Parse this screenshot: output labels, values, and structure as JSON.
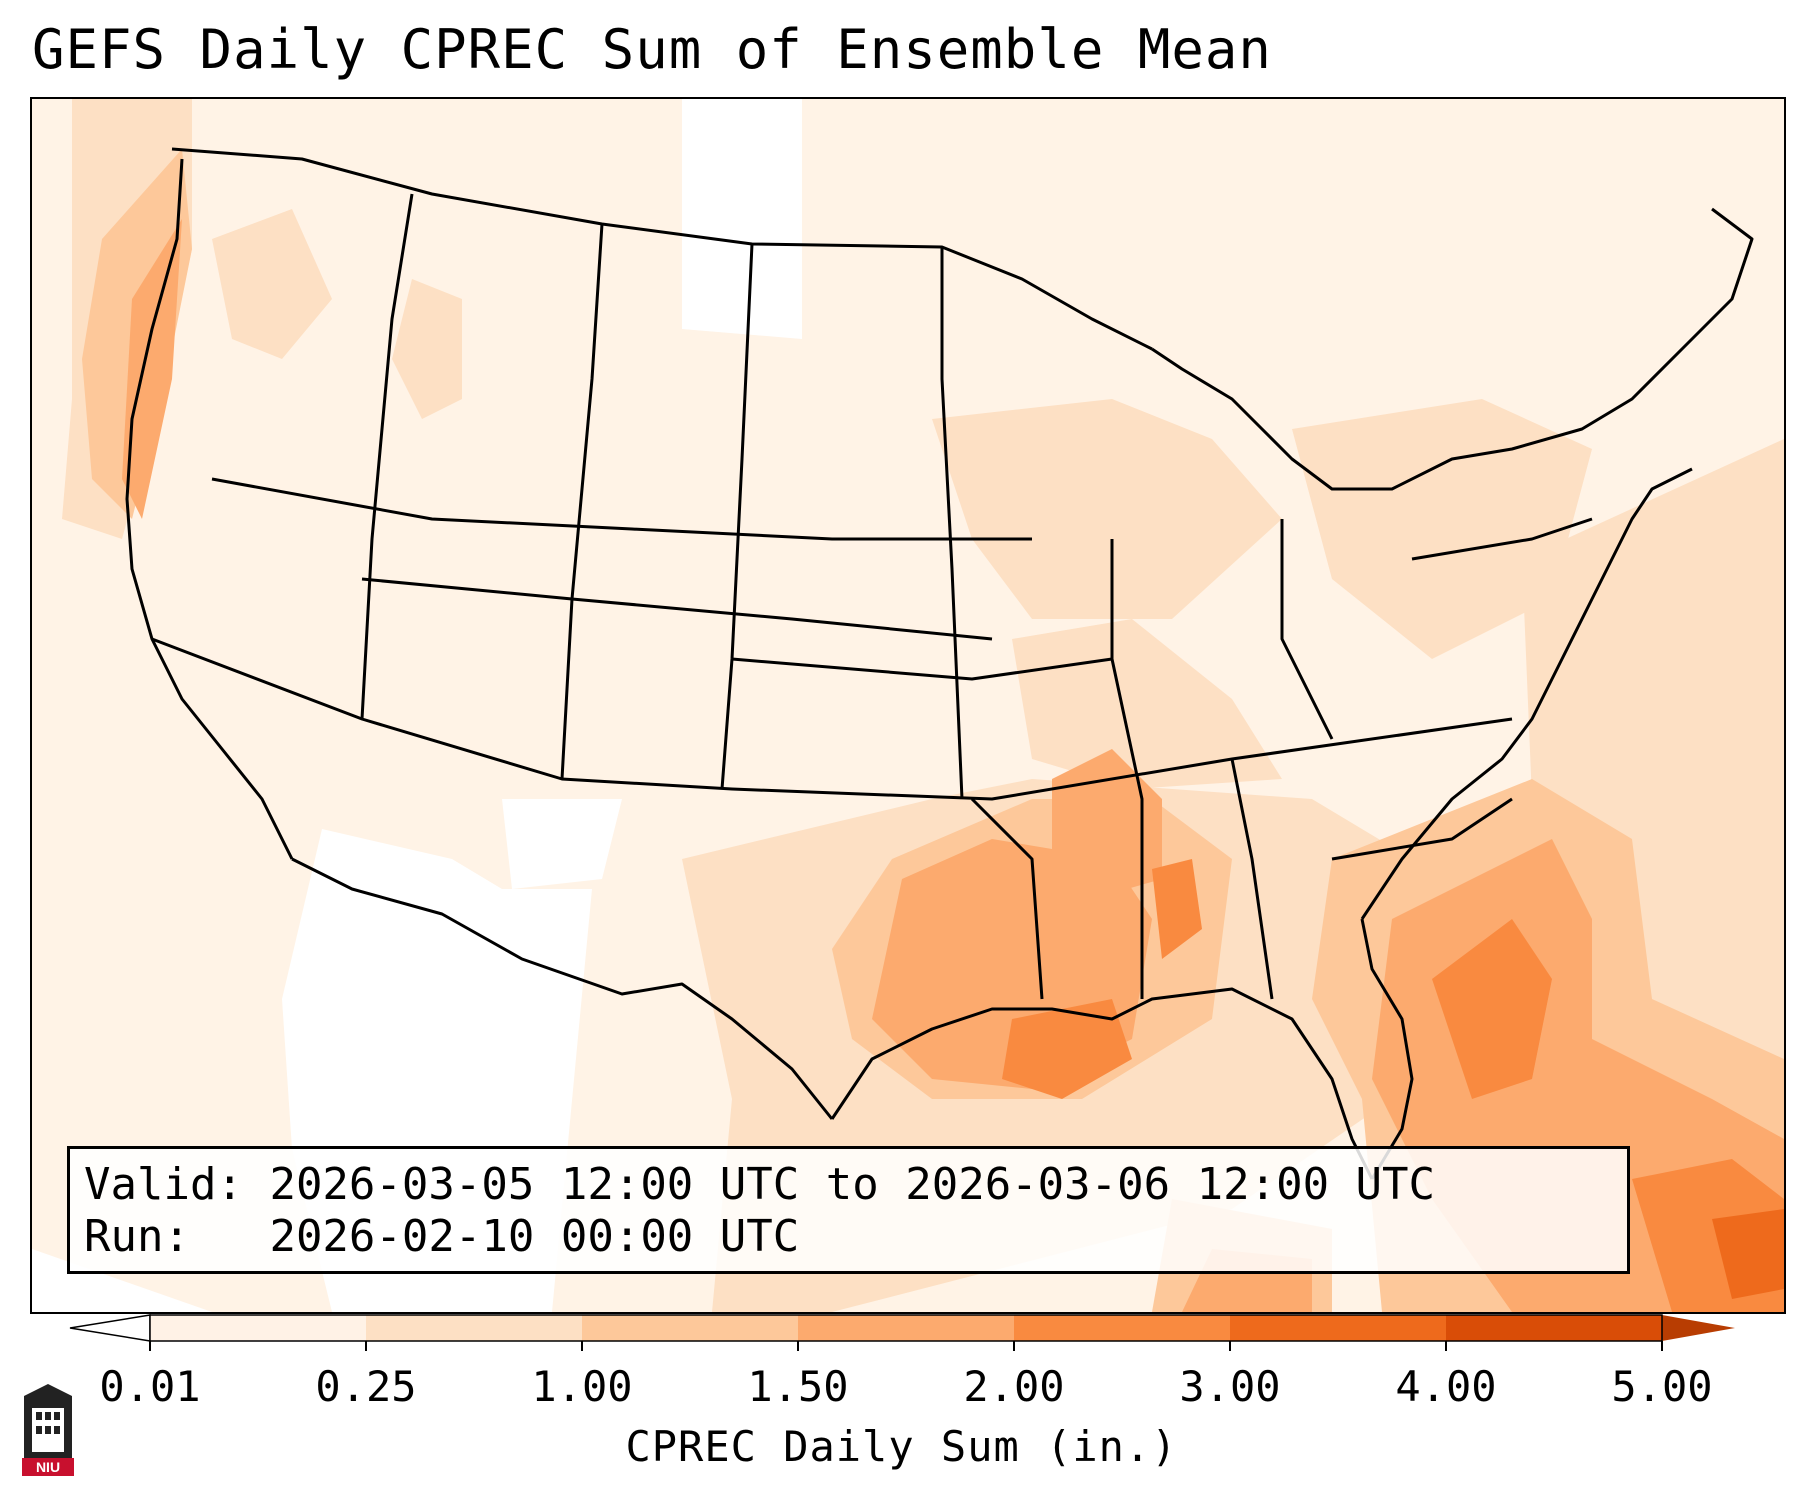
{
  "title": "GEFS Daily CPREC Sum of Ensemble Mean",
  "info": {
    "valid_label": "Valid:",
    "valid_value": "2026-03-05 12:00 UTC to 2026-03-06 12:00 UTC",
    "run_label": "Run:",
    "run_value": "2026-02-10 00:00 UTC"
  },
  "colorbar": {
    "label": "CPREC Daily Sum (in.)",
    "ticks": [
      "0.01",
      "0.25",
      "1.00",
      "1.50",
      "2.00",
      "3.00",
      "4.00",
      "5.00"
    ],
    "bins": [
      {
        "from": "0.01",
        "to": "0.25",
        "color": "#fff2e6"
      },
      {
        "from": "0.25",
        "to": "1.00",
        "color": "#fde0c4"
      },
      {
        "from": "1.00",
        "to": "1.50",
        "color": "#fdc89a"
      },
      {
        "from": "1.50",
        "to": "2.00",
        "color": "#fcaa6e"
      },
      {
        "from": "2.00",
        "to": "3.00",
        "color": "#f98a40"
      },
      {
        "from": "3.00",
        "to": "4.00",
        "color": "#ee6a1c"
      },
      {
        "from": "4.00",
        "to": "5.00",
        "color": "#d94d07"
      }
    ],
    "under_color": "#ffffff",
    "over_color": "#b83d02",
    "extend": "both"
  },
  "logo": {
    "text": "NIU",
    "color": "#c8102e"
  }
}
